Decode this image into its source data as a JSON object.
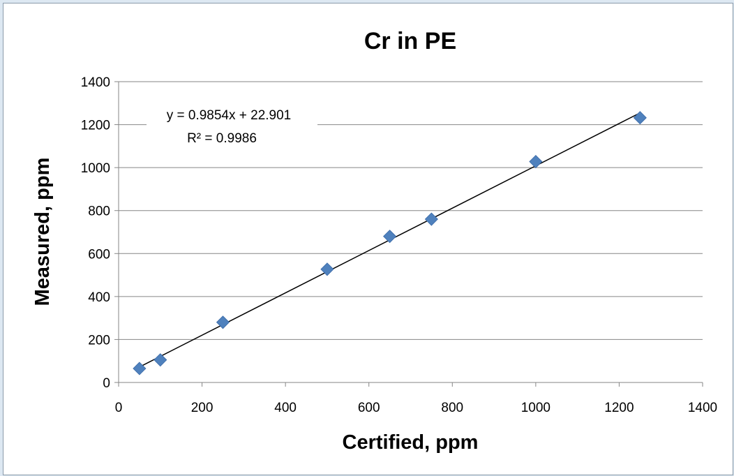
{
  "chart_data": {
    "type": "scatter",
    "title": "Cr in PE",
    "xlabel": "Certified, ppm",
    "ylabel": "Measured, ppm",
    "xlim": [
      0,
      1400
    ],
    "ylim": [
      0,
      1400
    ],
    "xticks": [
      "0",
      "200",
      "400",
      "600",
      "800",
      "1000",
      "1200",
      "1400"
    ],
    "yticks": [
      "0",
      "200",
      "400",
      "600",
      "800",
      "1000",
      "1200",
      "1400"
    ],
    "grid": "horizontal major gridlines",
    "marker": "diamond",
    "marker_color": "#4f81bd",
    "points": [
      {
        "x": 50,
        "y": 65
      },
      {
        "x": 100,
        "y": 105
      },
      {
        "x": 250,
        "y": 280
      },
      {
        "x": 500,
        "y": 527
      },
      {
        "x": 650,
        "y": 680
      },
      {
        "x": 750,
        "y": 760
      },
      {
        "x": 1000,
        "y": 1028
      },
      {
        "x": 1250,
        "y": 1232
      }
    ],
    "trendline": {
      "type": "linear",
      "slope": 0.9854,
      "intercept": 22.901,
      "x_range": [
        50,
        1250
      ],
      "color": "#000000",
      "equation_label": "y = 0.9854x + 22.901",
      "r2_label": "R² = 0.9986"
    }
  }
}
